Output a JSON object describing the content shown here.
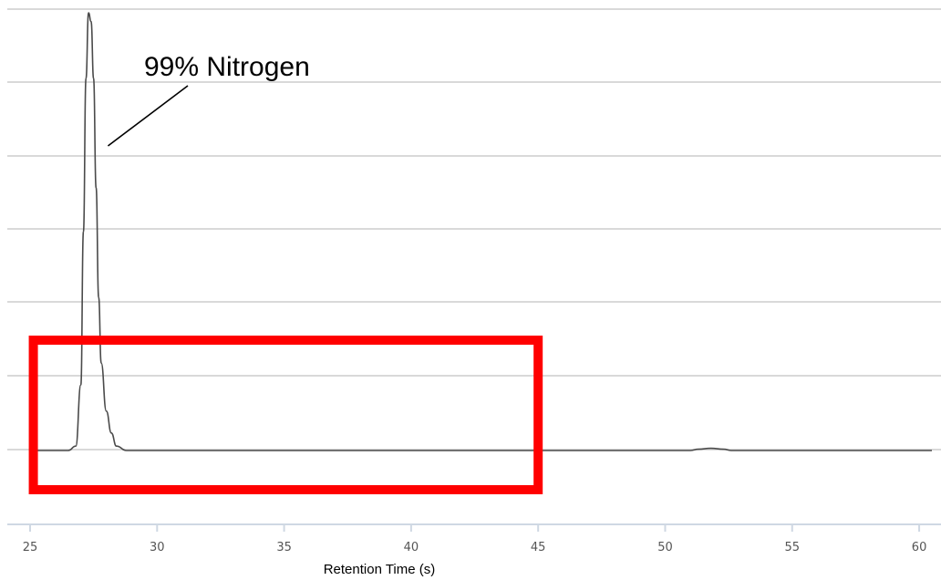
{
  "chart_data": {
    "type": "line",
    "title": "",
    "xlabel": "Retention Time (s)",
    "ylabel": "",
    "xlim": [
      25,
      60.5
    ],
    "x_ticks": [
      25,
      30,
      35,
      40,
      45,
      50,
      55,
      60
    ],
    "grid": "horizontal lines, no y tick labels",
    "series": [
      {
        "color": "#4a4a4a",
        "points": [
          [
            25.0,
            0.0
          ],
          [
            26.5,
            0.0
          ],
          [
            26.8,
            0.01
          ],
          [
            27.0,
            0.15
          ],
          [
            27.1,
            0.5
          ],
          [
            27.2,
            0.85
          ],
          [
            27.3,
            1.0
          ],
          [
            27.4,
            0.98
          ],
          [
            27.5,
            0.85
          ],
          [
            27.6,
            0.6
          ],
          [
            27.7,
            0.35
          ],
          [
            27.8,
            0.2
          ],
          [
            28.0,
            0.09
          ],
          [
            28.2,
            0.04
          ],
          [
            28.4,
            0.01
          ],
          [
            28.8,
            0.0
          ],
          [
            51.0,
            0.0
          ],
          [
            51.3,
            0.003
          ],
          [
            51.8,
            0.005
          ],
          [
            52.3,
            0.003
          ],
          [
            52.6,
            0.0
          ],
          [
            60.5,
            0.0
          ]
        ]
      }
    ],
    "annotations": [
      {
        "text": "99% Nitrogen",
        "points_to_x": 27.6
      }
    ],
    "highlight_box": {
      "x_range": [
        25.2,
        45
      ],
      "color": "#ff0000"
    }
  }
}
